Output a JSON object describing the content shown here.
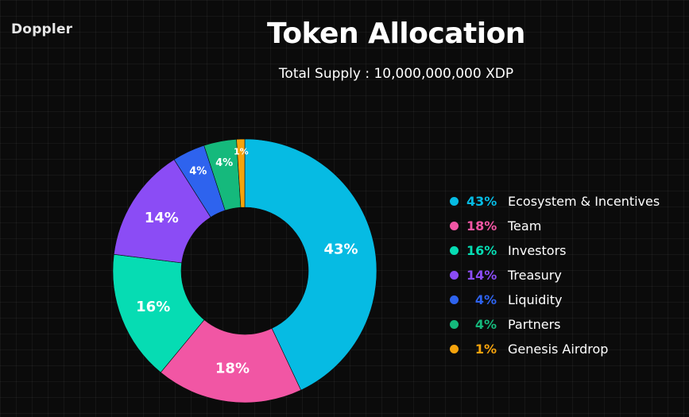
{
  "brand": {
    "name": "Doppler"
  },
  "chart_data": {
    "type": "pie",
    "variant": "donut",
    "title": "Token Allocation",
    "subtitle": "Total Supply : 10,000,000,000 XDP",
    "slices": [
      {
        "name": "Ecosystem & Incentives",
        "value": 43,
        "label": "43%",
        "color": "#06bbe3"
      },
      {
        "name": "Team",
        "value": 18,
        "label": "18%",
        "color": "#f156a4"
      },
      {
        "name": "Investors",
        "value": 16,
        "label": "16%",
        "color": "#06dcb3"
      },
      {
        "name": "Treasury",
        "value": 14,
        "label": "14%",
        "color": "#8b4cf5"
      },
      {
        "name": "Liquidity",
        "value": 4,
        "label": "4%",
        "color": "#2e63ee"
      },
      {
        "name": "Partners",
        "value": 4,
        "label": "4%",
        "color": "#15b97c"
      },
      {
        "name": "Genesis Airdrop",
        "value": 1,
        "label": "1%",
        "color": "#f5a30c"
      }
    ],
    "legend_position": "right",
    "grid": true
  },
  "colors": {
    "background": "#0b0b0b",
    "text": "#ffffff"
  }
}
